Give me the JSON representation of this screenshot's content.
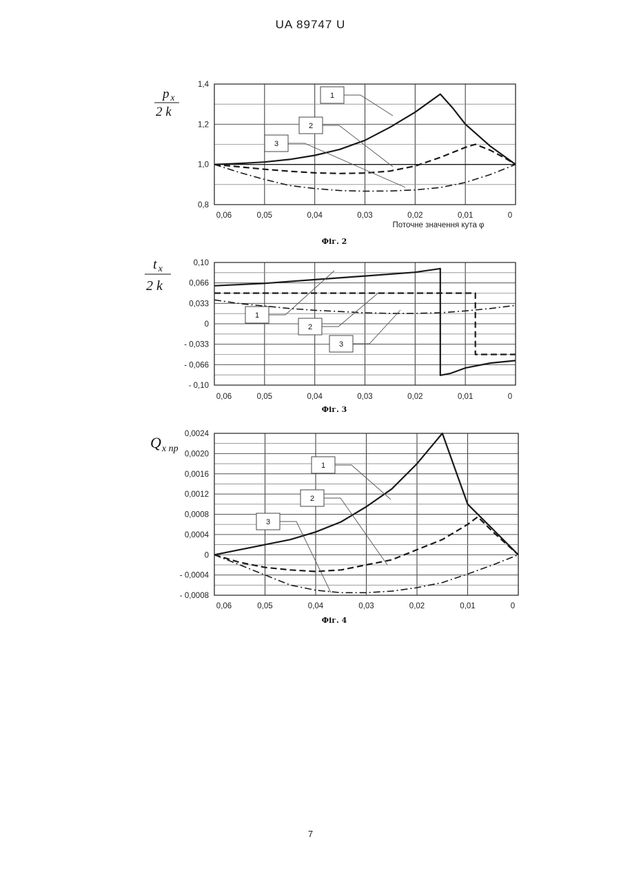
{
  "page": {
    "header": "UA   89747   U",
    "page_number": "7"
  },
  "chart_data": [
    {
      "type": "line",
      "caption": "Фіг. 2",
      "ylabel": {
        "num_var": "p",
        "num_sub": "x",
        "den": "2 k"
      },
      "xlabel": "Поточне  значення  кута  φ",
      "x_ticks": [
        "0,06",
        "0,05",
        "0,04",
        "0,03",
        "0,02",
        "0,01",
        "0"
      ],
      "y_ticks": [
        "1,4",
        "1,2",
        "1,0",
        "0,8"
      ],
      "x_range": [
        0.06,
        0
      ],
      "ylim": [
        0.8,
        1.4
      ],
      "grid": true,
      "series": [
        {
          "name": "1",
          "style": "solid",
          "callout": "1",
          "points": [
            [
              0.06,
              1.0
            ],
            [
              0.055,
              1.005
            ],
            [
              0.05,
              1.012
            ],
            [
              0.045,
              1.025
            ],
            [
              0.04,
              1.045
            ],
            [
              0.035,
              1.075
            ],
            [
              0.03,
              1.12
            ],
            [
              0.025,
              1.185
            ],
            [
              0.02,
              1.26
            ],
            [
              0.015,
              1.35
            ],
            [
              0.0125,
              1.28
            ],
            [
              0.01,
              1.2
            ],
            [
              0.005,
              1.09
            ],
            [
              0.0,
              1.0
            ]
          ]
        },
        {
          "name": "2",
          "style": "dashed",
          "callout": "2",
          "points": [
            [
              0.06,
              1.0
            ],
            [
              0.055,
              0.988
            ],
            [
              0.05,
              0.976
            ],
            [
              0.045,
              0.966
            ],
            [
              0.04,
              0.958
            ],
            [
              0.035,
              0.955
            ],
            [
              0.03,
              0.957
            ],
            [
              0.025,
              0.967
            ],
            [
              0.02,
              0.992
            ],
            [
              0.015,
              1.035
            ],
            [
              0.01,
              1.085
            ],
            [
              0.008,
              1.1
            ],
            [
              0.005,
              1.07
            ],
            [
              0.002,
              1.03
            ],
            [
              0.0,
              1.0
            ]
          ]
        },
        {
          "name": "3",
          "style": "dashdot",
          "callout": "3",
          "points": [
            [
              0.06,
              1.0
            ],
            [
              0.055,
              0.96
            ],
            [
              0.05,
              0.925
            ],
            [
              0.045,
              0.895
            ],
            [
              0.04,
              0.88
            ],
            [
              0.035,
              0.87
            ],
            [
              0.03,
              0.867
            ],
            [
              0.025,
              0.868
            ],
            [
              0.02,
              0.873
            ],
            [
              0.015,
              0.885
            ],
            [
              0.01,
              0.91
            ],
            [
              0.005,
              0.95
            ],
            [
              0.0,
              1.0
            ]
          ]
        },
        {
          "name": "",
          "style": "solid-thin",
          "points": [
            [
              0.06,
              1.0
            ],
            [
              0.0,
              1.0
            ]
          ]
        }
      ]
    },
    {
      "type": "line",
      "caption": "Фіг. 3",
      "ylabel": {
        "num_var": "t",
        "num_sub": "x",
        "den": "2 k"
      },
      "x_ticks": [
        "0,06",
        "0,05",
        "0,04",
        "0,03",
        "0,02",
        "0,01",
        "0"
      ],
      "y_ticks": [
        "0,10",
        "0,066",
        "0,033",
        "0",
        "- 0,033",
        "- 0,066",
        "- 0,10"
      ],
      "x_range": [
        0.06,
        0
      ],
      "ylim": [
        -0.1,
        0.1
      ],
      "grid": true,
      "series": [
        {
          "name": "1",
          "style": "solid",
          "callout": "1",
          "points": [
            [
              0.06,
              0.062
            ],
            [
              0.05,
              0.066
            ],
            [
              0.04,
              0.072
            ],
            [
              0.03,
              0.078
            ],
            [
              0.02,
              0.084
            ],
            [
              0.015,
              0.09
            ],
            [
              0.015,
              -0.084
            ],
            [
              0.013,
              -0.081
            ],
            [
              0.01,
              -0.072
            ],
            [
              0.005,
              -0.064
            ],
            [
              0.0,
              -0.06
            ]
          ]
        },
        {
          "name": "2",
          "style": "dashed",
          "callout": "2",
          "points": [
            [
              0.06,
              0.05
            ],
            [
              0.05,
              0.05
            ],
            [
              0.04,
              0.05
            ],
            [
              0.03,
              0.05
            ],
            [
              0.02,
              0.05
            ],
            [
              0.01,
              0.05
            ],
            [
              0.008,
              0.05
            ],
            [
              0.008,
              -0.05
            ],
            [
              0.004,
              -0.05
            ],
            [
              0.0,
              -0.05
            ]
          ]
        },
        {
          "name": "3",
          "style": "dashdot",
          "callout": "3",
          "points": [
            [
              0.06,
              0.039
            ],
            [
              0.055,
              0.033
            ],
            [
              0.05,
              0.029
            ],
            [
              0.045,
              0.025
            ],
            [
              0.04,
              0.022
            ],
            [
              0.035,
              0.02
            ],
            [
              0.03,
              0.018
            ],
            [
              0.025,
              0.017
            ],
            [
              0.02,
              0.017
            ],
            [
              0.015,
              0.018
            ],
            [
              0.01,
              0.021
            ],
            [
              0.005,
              0.025
            ],
            [
              0.0,
              0.03
            ]
          ]
        }
      ]
    },
    {
      "type": "line",
      "caption": "Фіг. 4",
      "ylabel": {
        "var": "Q",
        "sub": "x пр"
      },
      "x_ticks": [
        "0,06",
        "0,05",
        "0,04",
        "0,03",
        "0,02",
        "0,01",
        "0"
      ],
      "y_ticks": [
        "0,0024",
        "0,0020",
        "0,0016",
        "0,0012",
        "0,0008",
        "0,0004",
        "0",
        "- 0,0004",
        "- 0,0008"
      ],
      "x_range": [
        0.06,
        0
      ],
      "ylim": [
        -0.0008,
        0.0024
      ],
      "grid": true,
      "series": [
        {
          "name": "1",
          "style": "solid",
          "callout": "1",
          "points": [
            [
              0.06,
              0.0
            ],
            [
              0.055,
              0.0001
            ],
            [
              0.05,
              0.0002
            ],
            [
              0.045,
              0.0003
            ],
            [
              0.04,
              0.00045
            ],
            [
              0.035,
              0.00065
            ],
            [
              0.03,
              0.00095
            ],
            [
              0.025,
              0.0013
            ],
            [
              0.02,
              0.0018
            ],
            [
              0.015,
              0.0024
            ],
            [
              0.0125,
              0.0017
            ],
            [
              0.01,
              0.001
            ],
            [
              0.005,
              0.0005
            ],
            [
              0.0,
              0.0
            ]
          ]
        },
        {
          "name": "2",
          "style": "dashed",
          "callout": "2",
          "points": [
            [
              0.06,
              0.0
            ],
            [
              0.055,
              -0.00015
            ],
            [
              0.05,
              -0.00025
            ],
            [
              0.045,
              -0.0003
            ],
            [
              0.04,
              -0.00033
            ],
            [
              0.035,
              -0.0003
            ],
            [
              0.03,
              -0.0002
            ],
            [
              0.025,
              -0.0001
            ],
            [
              0.02,
              0.0001
            ],
            [
              0.015,
              0.0003
            ],
            [
              0.01,
              0.0006
            ],
            [
              0.008,
              0.00075
            ],
            [
              0.005,
              0.00045
            ],
            [
              0.0,
              0.0
            ]
          ]
        },
        {
          "name": "3",
          "style": "dashdot",
          "callout": "3",
          "points": [
            [
              0.06,
              0.0
            ],
            [
              0.055,
              -0.0002
            ],
            [
              0.05,
              -0.0004
            ],
            [
              0.045,
              -0.0006
            ],
            [
              0.04,
              -0.0007
            ],
            [
              0.035,
              -0.00075
            ],
            [
              0.03,
              -0.00075
            ],
            [
              0.025,
              -0.00072
            ],
            [
              0.02,
              -0.00065
            ],
            [
              0.015,
              -0.00055
            ],
            [
              0.01,
              -0.00038
            ],
            [
              0.005,
              -0.0002
            ],
            [
              0.0,
              0.0
            ]
          ]
        }
      ]
    }
  ]
}
